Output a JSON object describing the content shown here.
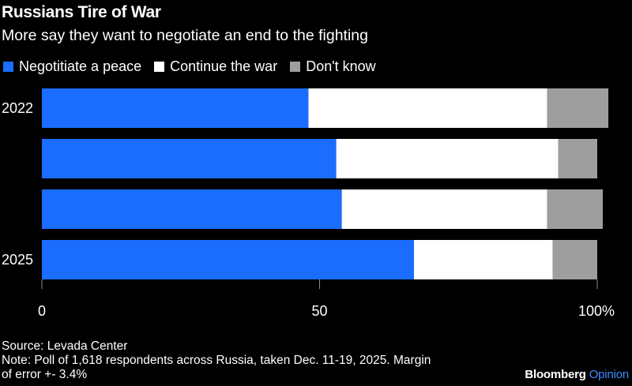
{
  "title": "Russians Tire of War",
  "subtitle": "More say they want to negotiate an end to the fighting",
  "legend": [
    {
      "label": "Negotitiate a peace",
      "color": "#1a6dff"
    },
    {
      "label": "Continue the war",
      "color": "#ffffff"
    },
    {
      "label": "Don't know",
      "color": "#9e9e9e"
    }
  ],
  "chart_data": {
    "type": "bar",
    "orientation": "horizontal",
    "stacked": true,
    "categories": [
      "2022",
      "",
      "",
      "2025"
    ],
    "series": [
      {
        "name": "Negotitiate a peace",
        "color": "#1a6dff",
        "values": [
          48,
          53,
          54,
          67
        ]
      },
      {
        "name": "Continue the war",
        "color": "#ffffff",
        "values": [
          43,
          40,
          37,
          25
        ]
      },
      {
        "name": "Don't know",
        "color": "#9e9e9e",
        "values": [
          11,
          7,
          10,
          8
        ]
      }
    ],
    "xlim": [
      0,
      100
    ],
    "xticks": [
      {
        "value": 0,
        "label": "0"
      },
      {
        "value": 50,
        "label": "50"
      },
      {
        "value": 100,
        "label": "100%"
      }
    ],
    "grid": false,
    "legend_position": "top-left"
  },
  "footer": {
    "source": "Source: Levada Center",
    "note_line1": "Note: Poll of 1,618 respondents across Russia, taken Dec. 11-19, 2025. Margin",
    "note_line2": "of error +- 3.4%"
  },
  "brand": {
    "name": "Bloomberg",
    "suffix": "Opinion"
  }
}
